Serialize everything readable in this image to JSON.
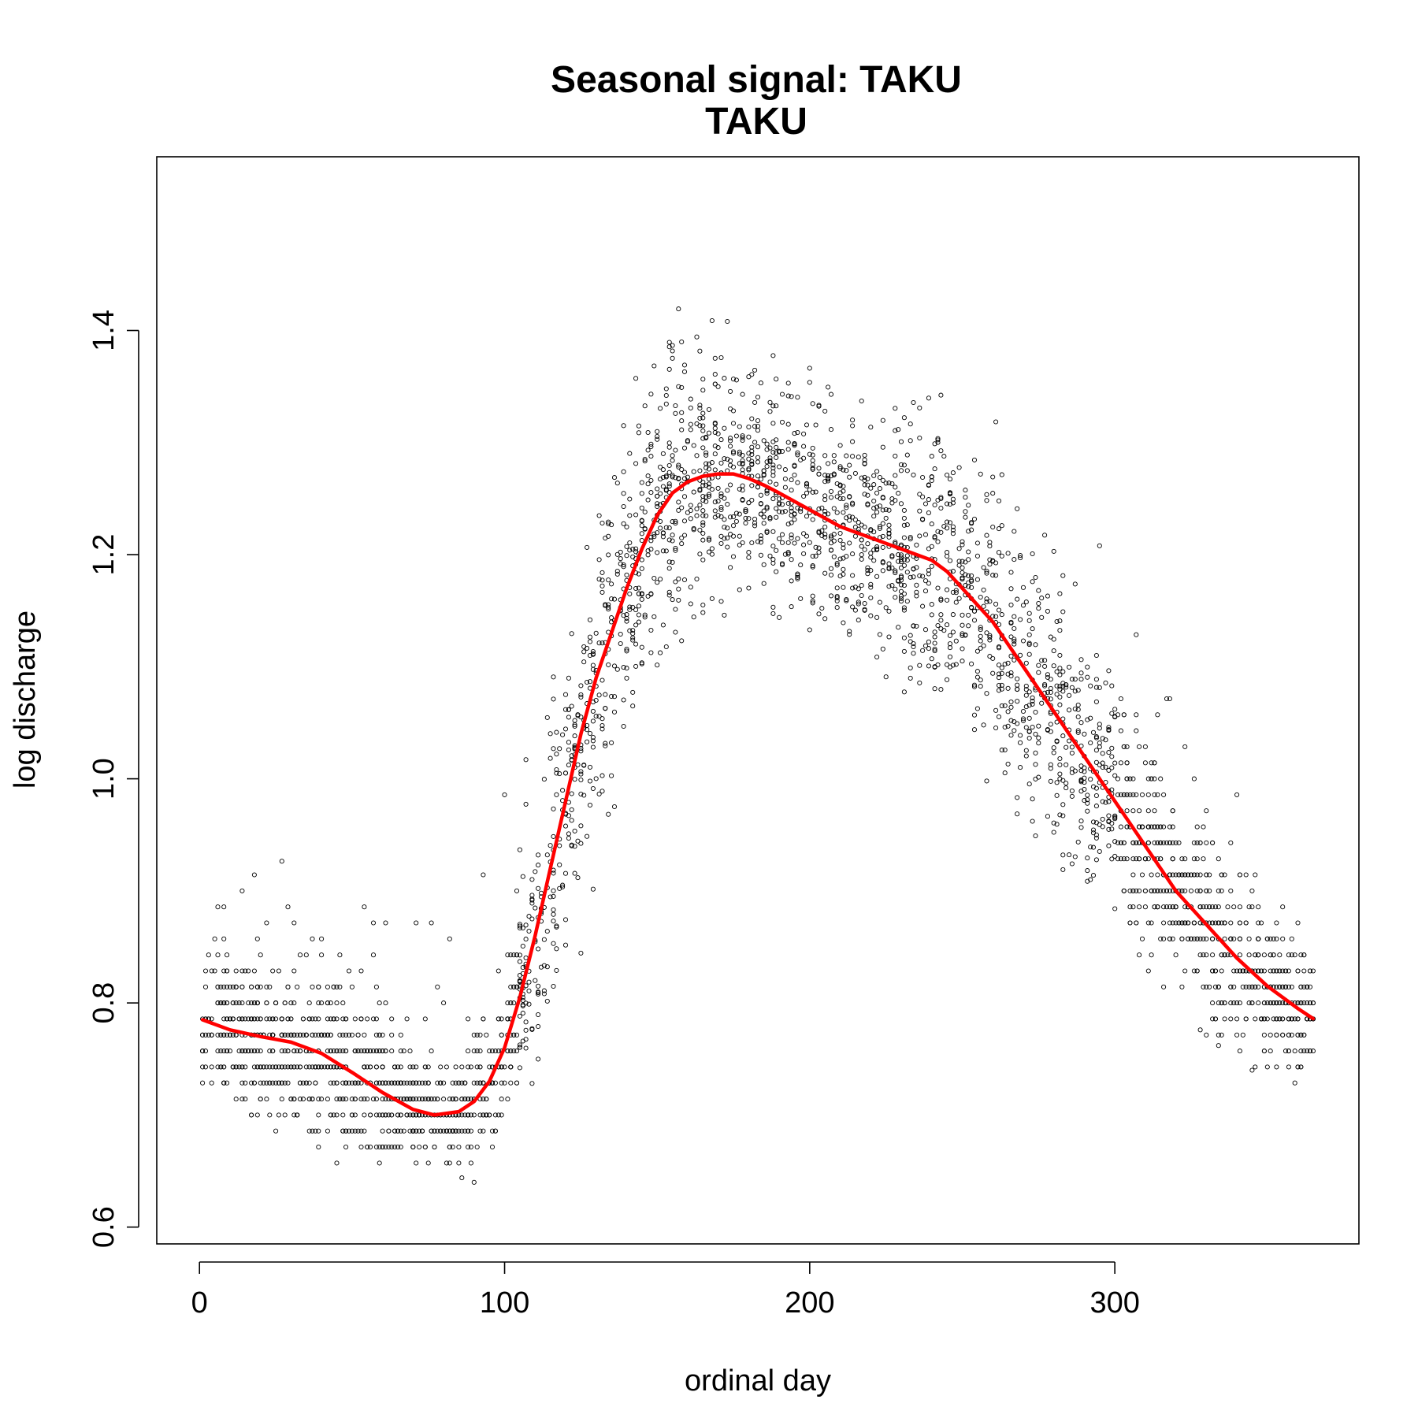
{
  "chart_data": {
    "type": "scatter",
    "title": "Seasonal signal: TAKU",
    "subtitle": "TAKU",
    "xlabel": "ordinal day",
    "ylabel": "log discharge",
    "xlim": [
      -14,
      380
    ],
    "ylim": [
      0.585,
      1.555
    ],
    "x_ticks": [
      0,
      100,
      200,
      300
    ],
    "x_tick_labels": [
      "0",
      "100",
      "200",
      "300"
    ],
    "y_ticks": [
      0.6,
      0.8,
      1.0,
      1.2,
      1.4
    ],
    "y_tick_labels": [
      "0.6",
      "0.8",
      "1.0",
      "1.2",
      "1.4"
    ],
    "grid": false,
    "colors": {
      "points": "#000000",
      "smooth_line": "#ff0000"
    },
    "point_marker": "open-circle",
    "envelope": {
      "x": [
        1,
        20,
        40,
        60,
        80,
        90,
        100,
        110,
        120,
        130,
        140,
        150,
        160,
        175,
        190,
        210,
        230,
        250,
        270,
        290,
        310,
        330,
        350,
        365
      ],
      "lower": [
        0.71,
        0.69,
        0.66,
        0.64,
        0.65,
        0.64,
        0.67,
        0.71,
        0.78,
        0.86,
        0.97,
        1.08,
        1.13,
        1.15,
        1.14,
        1.12,
        1.08,
        1.03,
        0.95,
        0.88,
        0.83,
        0.77,
        0.73,
        0.72
      ],
      "upper": [
        0.9,
        0.93,
        0.92,
        0.88,
        0.87,
        0.9,
        1.0,
        1.06,
        1.14,
        1.25,
        1.34,
        1.4,
        1.43,
        1.44,
        1.4,
        1.38,
        1.37,
        1.35,
        1.3,
        1.24,
        1.12,
        1.02,
        0.96,
        0.9
      ]
    },
    "point_count": 3600,
    "series": [
      {
        "type": "line",
        "x": [
          1,
          10,
          20,
          30,
          40,
          50,
          60,
          70,
          77,
          85,
          90,
          95,
          100,
          105,
          110,
          115,
          120,
          125,
          130,
          135,
          140,
          145,
          150,
          155,
          160,
          165,
          170,
          175,
          180,
          185,
          190,
          200,
          210,
          220,
          230,
          240,
          245,
          250,
          255,
          260,
          265,
          270,
          280,
          290,
          300,
          310,
          320,
          330,
          340,
          350,
          360,
          365
        ],
        "y": [
          0.785,
          0.776,
          0.77,
          0.765,
          0.755,
          0.738,
          0.72,
          0.705,
          0.7,
          0.703,
          0.712,
          0.73,
          0.76,
          0.805,
          0.86,
          0.92,
          0.98,
          1.04,
          1.09,
          1.13,
          1.17,
          1.205,
          1.235,
          1.255,
          1.265,
          1.27,
          1.272,
          1.272,
          1.268,
          1.262,
          1.255,
          1.24,
          1.225,
          1.215,
          1.205,
          1.195,
          1.185,
          1.17,
          1.155,
          1.14,
          1.12,
          1.1,
          1.06,
          1.02,
          0.98,
          0.94,
          0.9,
          0.87,
          0.84,
          0.815,
          0.795,
          0.786
        ]
      }
    ]
  }
}
